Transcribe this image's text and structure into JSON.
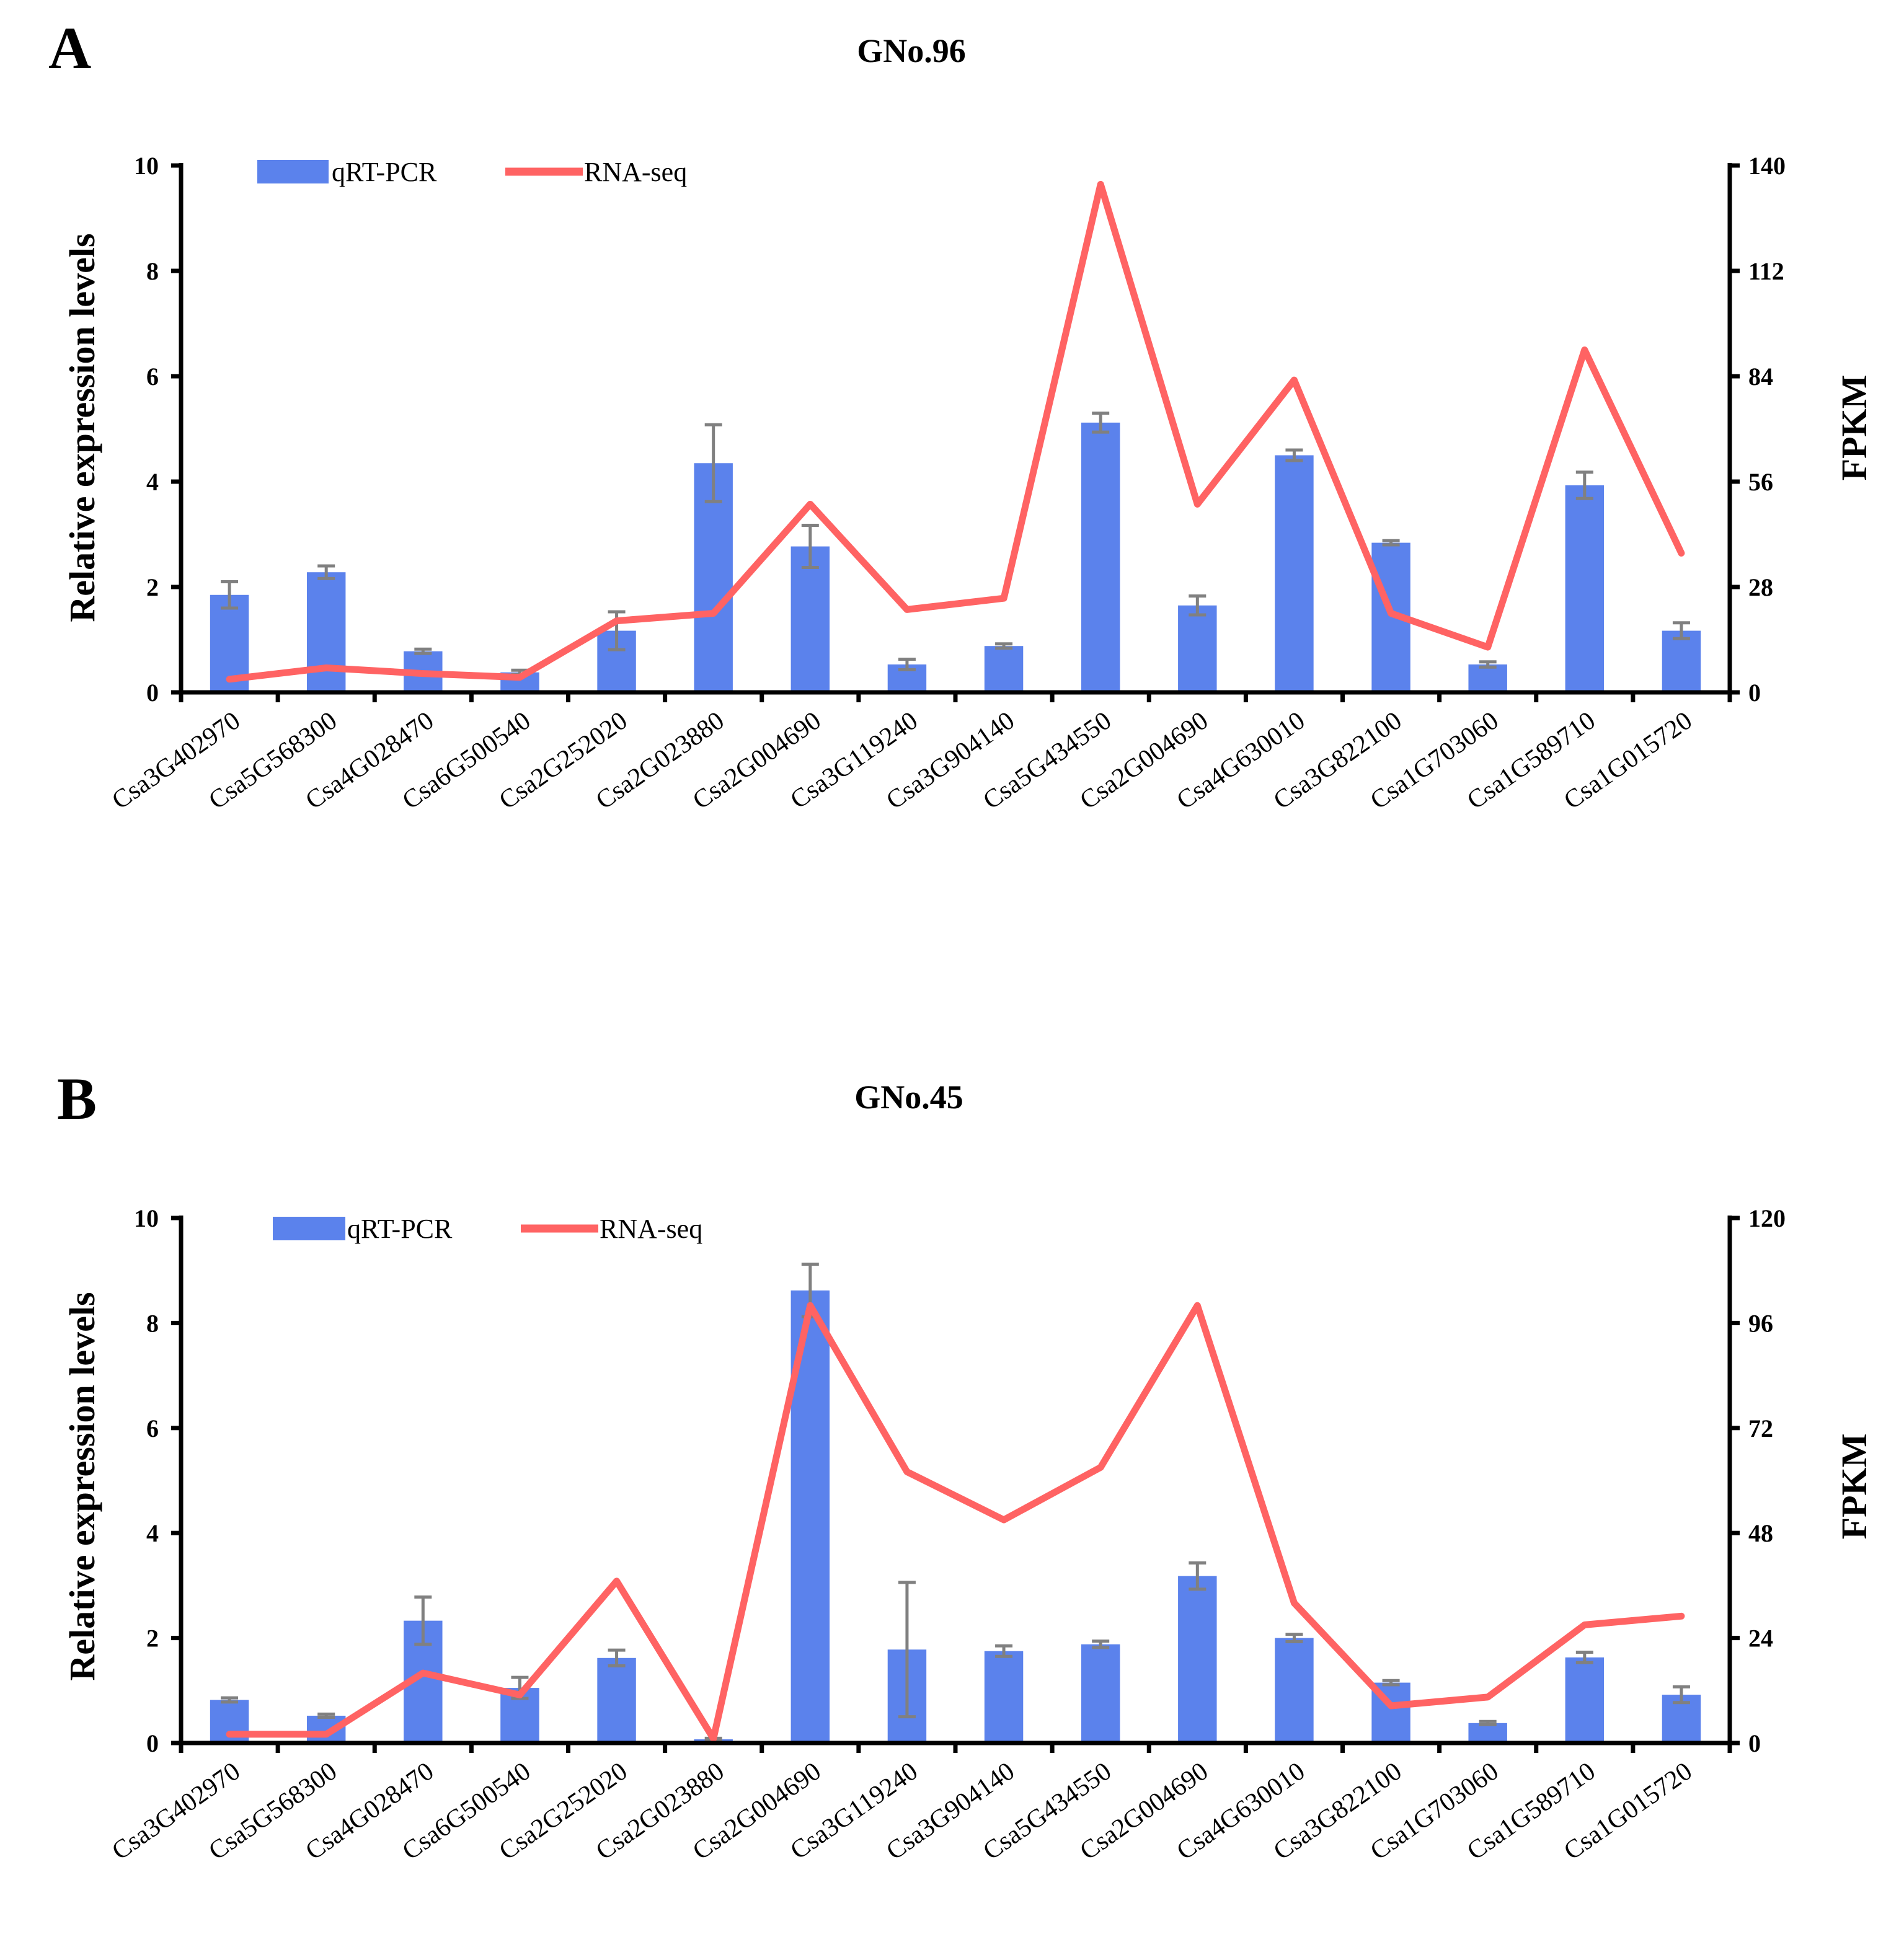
{
  "colors": {
    "bar": "#5b82ec",
    "line": "#ff6363",
    "error": "#808080",
    "axis": "#000000"
  },
  "chart_data": [
    {
      "panel": "A",
      "type": "bar",
      "title": "GNo.96",
      "ylabel": "Relative expression levels",
      "y2label": "FPKM",
      "ylim": [
        0,
        10
      ],
      "y_ticks": [
        "0",
        "2",
        "4",
        "6",
        "8",
        "10"
      ],
      "y2lim": [
        0,
        140
      ],
      "y2_ticks": [
        "0",
        "28",
        "56",
        "84",
        "112",
        "140"
      ],
      "legend": {
        "bar": "qRT-PCR",
        "line": "RNA-seq",
        "position": "top-left"
      },
      "categories": [
        "Csa3G402970",
        "Csa5G568300",
        "Csa4G028470",
        "Csa6G500540",
        "Csa2G252020",
        "Csa2G023880",
        "Csa2G004690",
        "Csa3G119240",
        "Csa3G904140",
        "Csa5G434550",
        "Csa2G004690",
        "Csa4G630010",
        "Csa3G822100",
        "Csa1G703060",
        "Csa1G589710",
        "Csa1G015720"
      ],
      "series": [
        {
          "name": "qRT-PCR",
          "axis": "left",
          "kind": "bar",
          "values": [
            1.85,
            2.28,
            0.78,
            0.38,
            1.17,
            4.35,
            2.77,
            0.53,
            0.88,
            5.12,
            1.65,
            4.5,
            2.84,
            0.53,
            3.93,
            1.17
          ],
          "errors": [
            0.25,
            0.12,
            0.04,
            0.04,
            0.36,
            0.73,
            0.4,
            0.1,
            0.04,
            0.18,
            0.18,
            0.1,
            0.04,
            0.05,
            0.25,
            0.15
          ]
        },
        {
          "name": "RNA-seq",
          "axis": "right",
          "kind": "line",
          "values": [
            3.5,
            6.5,
            5.0,
            4.0,
            19.0,
            21.0,
            50.0,
            22.0,
            25.0,
            135.0,
            50.0,
            83.0,
            21.0,
            12.0,
            91.0,
            37.0
          ]
        }
      ]
    },
    {
      "panel": "B",
      "type": "bar",
      "title": "GNo.45",
      "ylabel": "Relative expression levels",
      "y2label": "FPKM",
      "ylim": [
        0,
        10
      ],
      "y_ticks": [
        "0",
        "2",
        "4",
        "6",
        "8",
        "10"
      ],
      "y2lim": [
        0,
        120
      ],
      "y2_ticks": [
        "0",
        "24",
        "48",
        "72",
        "96",
        "120"
      ],
      "legend": {
        "bar": "qRT-PCR",
        "line": "RNA-seq",
        "position": "top-left"
      },
      "categories": [
        "Csa3G402970",
        "Csa5G568300",
        "Csa4G028470",
        "Csa6G500540",
        "Csa2G252020",
        "Csa2G023880",
        "Csa2G004690",
        "Csa3G119240",
        "Csa3G904140",
        "Csa5G434550",
        "Csa2G004690",
        "Csa4G630010",
        "Csa3G822100",
        "Csa1G703060",
        "Csa1G589710",
        "Csa1G015720"
      ],
      "series": [
        {
          "name": "qRT-PCR",
          "axis": "left",
          "kind": "bar",
          "values": [
            0.82,
            0.52,
            2.33,
            1.05,
            1.62,
            0.07,
            8.62,
            1.78,
            1.75,
            1.88,
            3.18,
            2.0,
            1.15,
            0.38,
            1.63,
            0.92
          ],
          "errors": [
            0.04,
            0.03,
            0.45,
            0.2,
            0.15,
            0.02,
            0.5,
            1.28,
            0.1,
            0.06,
            0.25,
            0.07,
            0.04,
            0.03,
            0.1,
            0.15
          ]
        },
        {
          "name": "RNA-seq",
          "axis": "right",
          "kind": "line",
          "values": [
            2.0,
            2.0,
            16.0,
            11.0,
            37.0,
            1.0,
            100.0,
            62.0,
            51.0,
            63.0,
            100.0,
            32.0,
            8.5,
            10.5,
            27.0,
            29.0
          ]
        }
      ]
    }
  ]
}
